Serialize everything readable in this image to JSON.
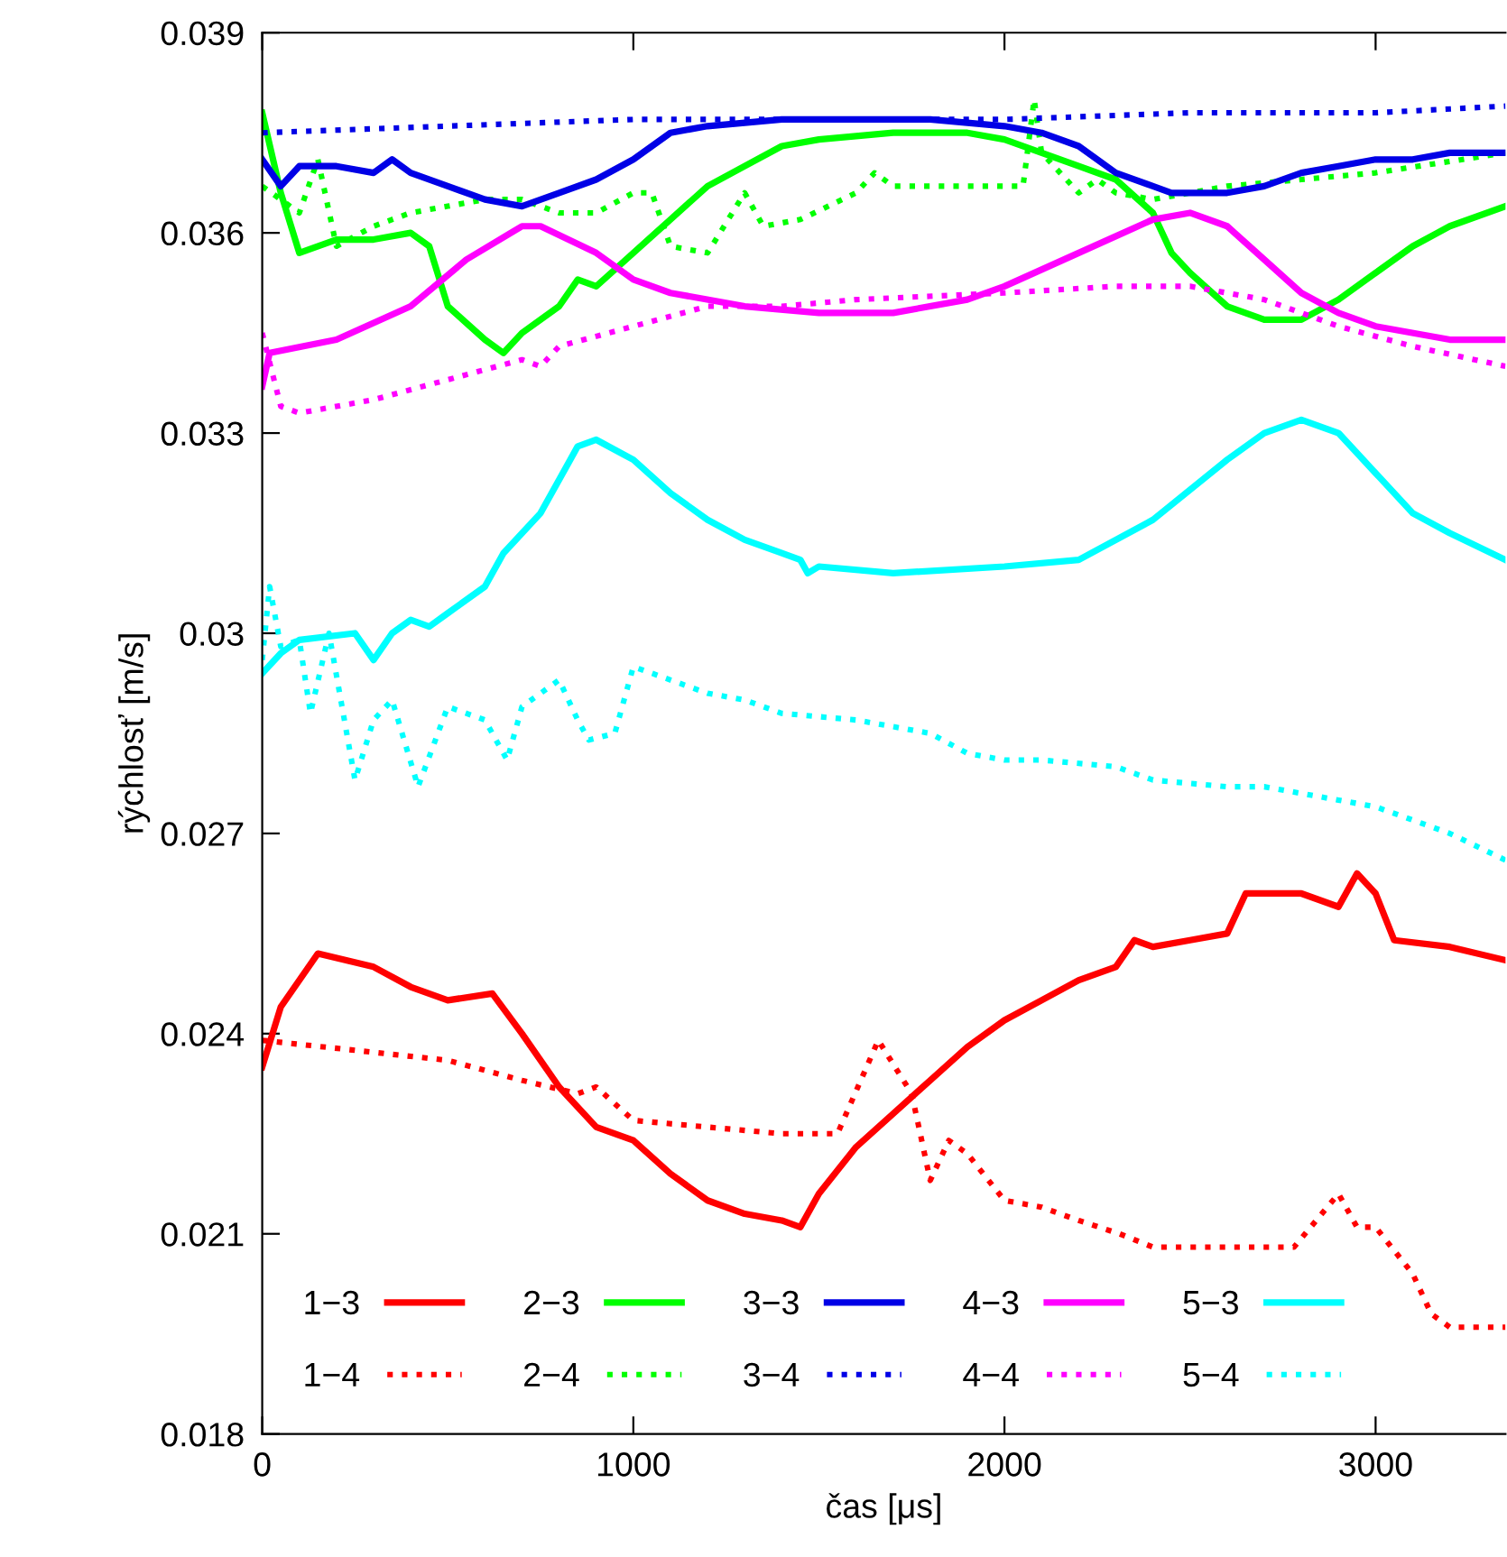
{
  "chart_data": {
    "type": "line",
    "xlabel": "čas [μs]",
    "ylabel": "rýchlosť [m/s]",
    "xlim": [
      0,
      3350
    ],
    "xticks": [
      0,
      1000,
      2000,
      3000
    ],
    "ylim": [
      0.018,
      0.039
    ],
    "yticks": [
      0.018,
      0.021,
      0.024,
      0.027,
      0.03,
      0.033,
      0.036,
      0.039
    ],
    "grid": false,
    "legend": "bottom left",
    "marker": "none",
    "series": [
      {
        "name": "1−3",
        "color": "#ff0000",
        "line_style": "solid",
        "x": [
          0,
          50,
          150,
          300,
          400,
          500,
          620,
          700,
          800,
          900,
          1000,
          1100,
          1200,
          1300,
          1400,
          1450,
          1500,
          1600,
          1700,
          1800,
          1900,
          2000,
          2100,
          2200,
          2300,
          2350,
          2400,
          2500,
          2600,
          2650,
          2800,
          2900,
          2950,
          3000,
          3050,
          3200,
          3350
        ],
        "values": [
          0.0235,
          0.0244,
          0.0252,
          0.025,
          0.0247,
          0.0245,
          0.0246,
          0.024,
          0.0232,
          0.0226,
          0.0224,
          0.0219,
          0.0215,
          0.0213,
          0.0212,
          0.0211,
          0.0216,
          0.0223,
          0.0228,
          0.0233,
          0.0238,
          0.0242,
          0.0245,
          0.0248,
          0.025,
          0.0254,
          0.0253,
          0.0254,
          0.0255,
          0.0261,
          0.0261,
          0.0259,
          0.0264,
          0.0261,
          0.0254,
          0.0253,
          0.0251
        ]
      },
      {
        "name": "1−4",
        "color": "#ff0000",
        "line_style": "dotted",
        "x": [
          0,
          500,
          700,
          850,
          900,
          1000,
          1200,
          1400,
          1550,
          1660,
          1750,
          1800,
          1850,
          1900,
          2000,
          2100,
          2200,
          2310,
          2400,
          2780,
          2900,
          2950,
          3000,
          3100,
          3150,
          3200,
          3350
        ],
        "values": [
          0.0239,
          0.0236,
          0.0233,
          0.0231,
          0.0232,
          0.0227,
          0.0226,
          0.0225,
          0.0225,
          0.0239,
          0.0231,
          0.0218,
          0.0224,
          0.0222,
          0.0215,
          0.0214,
          0.0212,
          0.021,
          0.0208,
          0.0208,
          0.0216,
          0.0211,
          0.0211,
          0.0204,
          0.0198,
          0.0196,
          0.0196
        ]
      },
      {
        "name": "2−3",
        "color": "#00ff00",
        "line_style": "solid",
        "x": [
          0,
          50,
          100,
          200,
          300,
          400,
          450,
          500,
          600,
          650,
          700,
          800,
          850,
          900,
          1000,
          1100,
          1200,
          1300,
          1400,
          1500,
          1700,
          1900,
          2000,
          2100,
          2200,
          2300,
          2400,
          2450,
          2500,
          2600,
          2700,
          2800,
          2900,
          3000,
          3100,
          3200,
          3350
        ],
        "values": [
          0.0378,
          0.0366,
          0.0357,
          0.0359,
          0.0359,
          0.036,
          0.0358,
          0.0349,
          0.0344,
          0.0342,
          0.0345,
          0.0349,
          0.0353,
          0.0352,
          0.0357,
          0.0362,
          0.0367,
          0.037,
          0.0373,
          0.0374,
          0.0375,
          0.0375,
          0.0374,
          0.0372,
          0.037,
          0.0368,
          0.0363,
          0.0357,
          0.0354,
          0.0349,
          0.0347,
          0.0347,
          0.035,
          0.0354,
          0.0358,
          0.0361,
          0.0364
        ]
      },
      {
        "name": "2−4",
        "color": "#00ff00",
        "line_style": "dotted",
        "x": [
          0,
          50,
          100,
          150,
          200,
          300,
          400,
          500,
          600,
          700,
          800,
          900,
          1000,
          1050,
          1100,
          1200,
          1300,
          1350,
          1450,
          1600,
          1650,
          1700,
          2000,
          2050,
          2080,
          2100,
          2200,
          2250,
          2300,
          2400,
          2500,
          2600,
          2800,
          3000,
          3350
        ],
        "values": [
          0.0367,
          0.0365,
          0.0363,
          0.0371,
          0.0358,
          0.0361,
          0.0363,
          0.0364,
          0.0365,
          0.0365,
          0.0363,
          0.0363,
          0.0366,
          0.0366,
          0.0358,
          0.0357,
          0.0366,
          0.0361,
          0.0362,
          0.0366,
          0.0369,
          0.0367,
          0.0367,
          0.0367,
          0.038,
          0.0372,
          0.0366,
          0.0368,
          0.0366,
          0.0365,
          0.0366,
          0.0367,
          0.0368,
          0.0369,
          0.0372
        ]
      },
      {
        "name": "3−3",
        "color": "#0000e6",
        "line_style": "solid",
        "x": [
          0,
          50,
          100,
          200,
          300,
          350,
          400,
          500,
          600,
          700,
          800,
          900,
          1000,
          1100,
          1200,
          1400,
          1600,
          1800,
          2000,
          2100,
          2200,
          2300,
          2400,
          2450,
          2500,
          2600,
          2700,
          2800,
          2900,
          3000,
          3100,
          3200,
          3350
        ],
        "values": [
          0.0371,
          0.0367,
          0.037,
          0.037,
          0.0369,
          0.0371,
          0.0369,
          0.0367,
          0.0365,
          0.0364,
          0.0366,
          0.0368,
          0.0371,
          0.0375,
          0.0376,
          0.0377,
          0.0377,
          0.0377,
          0.0376,
          0.0375,
          0.0373,
          0.0369,
          0.0367,
          0.0366,
          0.0366,
          0.0366,
          0.0367,
          0.0369,
          0.037,
          0.0371,
          0.0371,
          0.0372,
          0.0372
        ]
      },
      {
        "name": "3−4",
        "color": "#0000e6",
        "line_style": "dotted",
        "x": [
          0,
          500,
          1000,
          1500,
          2000,
          2500,
          3000,
          3350
        ],
        "values": [
          0.0375,
          0.0376,
          0.0377,
          0.0377,
          0.0377,
          0.0378,
          0.0378,
          0.0379
        ]
      },
      {
        "name": "4−3",
        "color": "#ff00ff",
        "line_style": "solid",
        "x": [
          0,
          20,
          200,
          400,
          550,
          700,
          750,
          900,
          1000,
          1100,
          1300,
          1500,
          1700,
          1900,
          2000,
          2200,
          2400,
          2500,
          2600,
          2700,
          2800,
          2900,
          3000,
          3200,
          3350
        ],
        "values": [
          0.0337,
          0.0342,
          0.0344,
          0.0349,
          0.0356,
          0.0361,
          0.0361,
          0.0357,
          0.0353,
          0.0351,
          0.0349,
          0.0348,
          0.0348,
          0.035,
          0.0352,
          0.0357,
          0.0362,
          0.0363,
          0.0361,
          0.0356,
          0.0351,
          0.0348,
          0.0346,
          0.0344,
          0.0344
        ]
      },
      {
        "name": "4−4",
        "color": "#ff00ff",
        "line_style": "dotted",
        "x": [
          0,
          50,
          100,
          300,
          500,
          700,
          750,
          800,
          1000,
          1200,
          1400,
          1600,
          2000,
          2300,
          2500,
          2700,
          2900,
          3100,
          3350
        ],
        "values": [
          0.0345,
          0.0334,
          0.0333,
          0.0335,
          0.0338,
          0.0341,
          0.034,
          0.0343,
          0.0346,
          0.0349,
          0.0349,
          0.035,
          0.0351,
          0.0352,
          0.0352,
          0.035,
          0.0346,
          0.0343,
          0.034
        ]
      },
      {
        "name": "5−3",
        "color": "#00ffff",
        "line_style": "solid",
        "x": [
          0,
          50,
          100,
          250,
          300,
          350,
          400,
          450,
          500,
          600,
          650,
          750,
          850,
          900,
          1000,
          1100,
          1200,
          1300,
          1400,
          1450,
          1470,
          1500,
          1700,
          2000,
          2200,
          2400,
          2600,
          2700,
          2800,
          2900,
          3000,
          3100,
          3200,
          3350
        ],
        "values": [
          0.0294,
          0.0297,
          0.0299,
          0.03,
          0.0296,
          0.03,
          0.0302,
          0.0301,
          0.0303,
          0.0307,
          0.0312,
          0.0318,
          0.0328,
          0.0329,
          0.0326,
          0.0321,
          0.0317,
          0.0314,
          0.0312,
          0.0311,
          0.0309,
          0.031,
          0.0309,
          0.031,
          0.0311,
          0.0317,
          0.0326,
          0.033,
          0.0332,
          0.033,
          0.0324,
          0.0318,
          0.0315,
          0.0311
        ]
      },
      {
        "name": "5−4",
        "color": "#00ffff",
        "line_style": "dotted",
        "x": [
          0,
          20,
          50,
          100,
          130,
          180,
          250,
          300,
          350,
          420,
          500,
          600,
          660,
          700,
          800,
          850,
          880,
          950,
          1000,
          1050,
          1200,
          1300,
          1400,
          1600,
          1700,
          1800,
          1900,
          2000,
          2100,
          2300,
          2400,
          2600,
          2700,
          2800,
          2900,
          3000,
          3100,
          3200,
          3350
        ],
        "values": [
          0.0296,
          0.0307,
          0.0298,
          0.0299,
          0.0288,
          0.03,
          0.0278,
          0.0287,
          0.029,
          0.0277,
          0.0289,
          0.0287,
          0.0281,
          0.0289,
          0.0293,
          0.0287,
          0.0284,
          0.0285,
          0.0295,
          0.0294,
          0.0291,
          0.029,
          0.0288,
          0.0287,
          0.0286,
          0.0285,
          0.0282,
          0.0281,
          0.0281,
          0.028,
          0.0278,
          0.0277,
          0.0277,
          0.0276,
          0.0275,
          0.0274,
          0.0272,
          0.027,
          0.0266
        ]
      }
    ]
  }
}
